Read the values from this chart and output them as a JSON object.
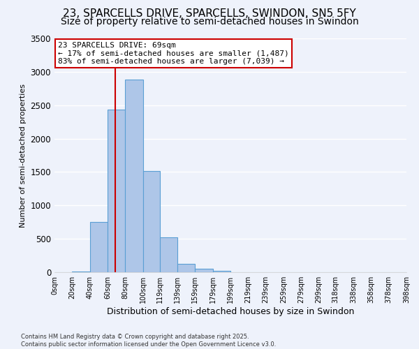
{
  "title_line1": "23, SPARCELLS DRIVE, SPARCELLS, SWINDON, SN5 5FY",
  "title_line2": "Size of property relative to semi-detached houses in Swindon",
  "xlabel": "Distribution of semi-detached houses by size in Swindon",
  "ylabel": "Number of semi-detached properties",
  "bin_edges": [
    0,
    20,
    40,
    60,
    80,
    100,
    119,
    139,
    159,
    179,
    199,
    219,
    239,
    259,
    279,
    299,
    318,
    338,
    358,
    378,
    398
  ],
  "bar_heights": [
    0,
    10,
    750,
    2430,
    2880,
    1520,
    520,
    130,
    50,
    20,
    5,
    2,
    2,
    2,
    2,
    2,
    1,
    1,
    1,
    1
  ],
  "bar_color": "#aec6e8",
  "bar_edge_color": "#5a9fd4",
  "property_size": 69,
  "red_line_color": "#cc0000",
  "annotation_text": "23 SPARCELLS DRIVE: 69sqm\n← 17% of semi-detached houses are smaller (1,487)\n83% of semi-detached houses are larger (7,039) →",
  "annotation_box_color": "#cc0000",
  "ylim": [
    0,
    3500
  ],
  "yticks": [
    0,
    500,
    1000,
    1500,
    2000,
    2500,
    3000,
    3500
  ],
  "footnote": "Contains HM Land Registry data © Crown copyright and database right 2025.\nContains public sector information licensed under the Open Government Licence v3.0.",
  "background_color": "#eef2fb",
  "grid_color": "#ffffff",
  "title_fontsize": 11,
  "subtitle_fontsize": 10,
  "tick_label_fontsize": 7,
  "ylabel_fontsize": 8,
  "xlabel_fontsize": 9
}
